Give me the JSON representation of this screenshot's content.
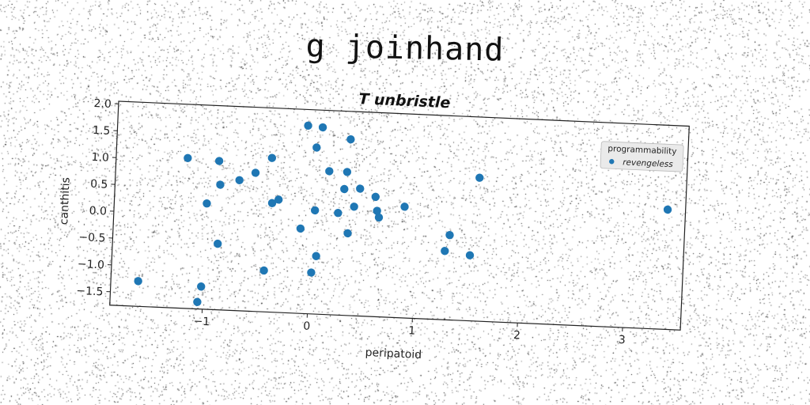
{
  "suptitle": "g joinhand",
  "chart_data": {
    "type": "scatter",
    "title": "T unbristle",
    "xlabel": "peripatoid",
    "ylabel": "canthitis",
    "xlim": [
      -1.88,
      3.55
    ],
    "ylim": [
      -1.75,
      2.05
    ],
    "xticks": [
      -1,
      0,
      1,
      2,
      3
    ],
    "yticks": [
      -1.5,
      -1.0,
      -0.5,
      0.0,
      0.5,
      1.0,
      1.5,
      2.0
    ],
    "xtick_labels": [
      "−1",
      "0",
      "1",
      "2",
      "3"
    ],
    "ytick_labels": [
      "−1.5",
      "−1.0",
      "−0.5",
      "0.0",
      "0.5",
      "1.0",
      "1.5",
      "2.0"
    ],
    "grid": false,
    "legend": {
      "title": "programmability",
      "placement": "top-right",
      "entries": [
        "revengeless"
      ]
    },
    "series": [
      {
        "name": "revengeless",
        "color": "#1f77b4",
        "x": [
          -0.07,
          0.07,
          0.34,
          0.02,
          -0.4,
          -1.2,
          -0.9,
          0.15,
          0.32,
          0.45,
          0.6,
          -0.88,
          -0.7,
          -0.55,
          0.3,
          -1.0,
          -0.38,
          -0.32,
          0.62,
          0.88,
          0.4,
          0.03,
          0.25,
          0.64,
          -0.1,
          0.35,
          1.32,
          1.28,
          1.52,
          -0.88,
          0.06,
          -0.43,
          0.02,
          -1.62,
          -1.02,
          -1.05,
          1.58,
          3.38
        ],
        "y": [
          1.75,
          1.73,
          1.53,
          1.35,
          1.12,
          1.05,
          1.02,
          0.92,
          0.92,
          0.62,
          0.48,
          0.58,
          0.68,
          0.83,
          0.6,
          0.22,
          0.28,
          0.35,
          0.22,
          0.32,
          0.28,
          0.18,
          0.15,
          0.1,
          -0.17,
          -0.22,
          -0.17,
          -0.47,
          -0.53,
          -0.52,
          -0.67,
          -0.98,
          -0.98,
          -1.28,
          -1.33,
          -1.62,
          0.92,
          0.48
        ]
      }
    ]
  }
}
